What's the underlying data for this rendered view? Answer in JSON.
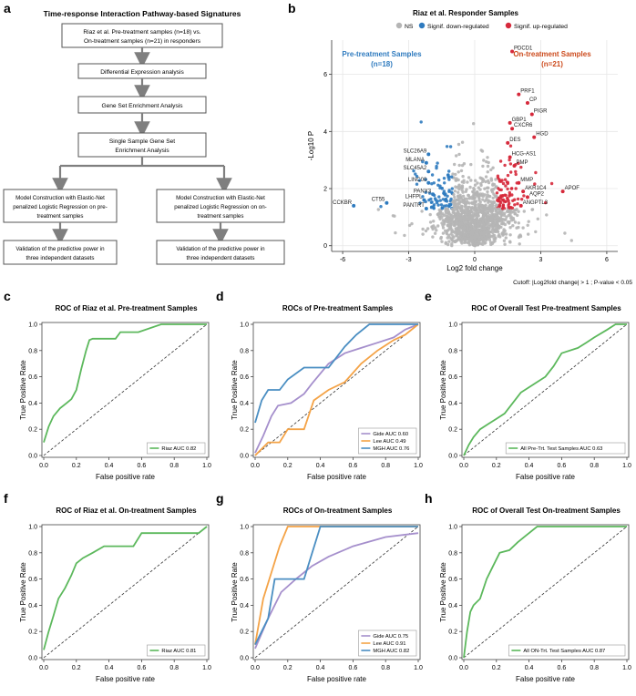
{
  "panel_letters": [
    "a",
    "b",
    "c",
    "d",
    "e",
    "f",
    "g",
    "h"
  ],
  "flowchart": {
    "title": "Time-response Interaction Pathway-based Signatures",
    "box1": [
      "Riaz et al. Pre-treatment samples (n=18) vs.",
      "On-treatment samples (n=21) in responders"
    ],
    "box2": "Differential Expression analysis",
    "box3": "Gene Set Enrichment Analysis",
    "box4": [
      "Single Sample Gene Set",
      "Enrichment Analysis"
    ],
    "left_model": [
      "Model Construction with Elastic-Net",
      "penalized Logistic Regression on pre-",
      "treatment samples"
    ],
    "right_model": [
      "Model Construction with Elastic-Net",
      "penalized Logistic Regression on on-",
      "treatment samples"
    ],
    "left_valid": [
      "Validation of the predictive power in",
      "three independent datasets"
    ],
    "right_valid": [
      "Validation of the predictive power in",
      "three independent datasets"
    ]
  },
  "colors": {
    "green": "#5cb85c",
    "purple": "#a58fcc",
    "orange": "#f4a347",
    "blue": "#4a8ec2",
    "ns": "#b5b5b5",
    "down": "#2f7bbf",
    "up": "#d6293b",
    "pre_label": "#2f7bbf",
    "on_label": "#cc4a1c"
  },
  "chart_data": [
    {
      "id": "b",
      "type": "scatter",
      "title": "Riaz et al. Responder Samples",
      "legend": [
        {
          "name": "NS",
          "color": "#b5b5b5"
        },
        {
          "name": "Signif. down-regulated",
          "color": "#2f7bbf"
        },
        {
          "name": "Signif. up-regulated",
          "color": "#d6293b"
        }
      ],
      "xlabel": "Log2 fold change",
      "ylabel": "-Log10 P",
      "xlim": [
        -6.5,
        6.5
      ],
      "ylim": [
        -0.2,
        7.2
      ],
      "xticks": [
        -6,
        -3,
        0,
        3,
        6
      ],
      "yticks": [
        0,
        2,
        4,
        6
      ],
      "annotations": {
        "pre": [
          "Pre-treatment Samples",
          "(n=18)"
        ],
        "on": [
          "On-treatment Samples",
          "(n=21)"
        ]
      },
      "caption": "Cutoff: |Log2fold change| > 1 ; P-value < 0.05",
      "gene_labels": [
        {
          "gene": "PDCD1",
          "x": 1.7,
          "y": 6.8
        },
        {
          "gene": "PRF1",
          "x": 2.0,
          "y": 5.3
        },
        {
          "gene": "CP",
          "x": 2.4,
          "y": 5.0
        },
        {
          "gene": "PIGR",
          "x": 2.6,
          "y": 4.6
        },
        {
          "gene": "GBP1",
          "x": 1.6,
          "y": 4.3
        },
        {
          "gene": "CXCR6",
          "x": 1.7,
          "y": 4.1
        },
        {
          "gene": "HGD",
          "x": 2.7,
          "y": 3.8
        },
        {
          "gene": "DES",
          "x": 1.5,
          "y": 3.6
        },
        {
          "gene": "SLC26A9",
          "x": -2.1,
          "y": 3.2
        },
        {
          "gene": "MLANA",
          "x": -2.2,
          "y": 2.9
        },
        {
          "gene": "SLC45A2",
          "x": -2.1,
          "y": 2.6
        },
        {
          "gene": "LINC00",
          "x": -2.1,
          "y": 2.2
        },
        {
          "gene": "PANX3",
          "x": -1.9,
          "y": 1.8
        },
        {
          "gene": "LHFPL",
          "x": -2.3,
          "y": 1.6
        },
        {
          "gene": "PANTRT",
          "x": -2.2,
          "y": 1.3
        },
        {
          "gene": "CT55",
          "x": -4.0,
          "y": 1.5
        },
        {
          "gene": "CCKBR",
          "x": -5.5,
          "y": 1.4
        },
        {
          "gene": "HCG-AS1",
          "x": 1.6,
          "y": 3.1
        },
        {
          "gene": "PMP",
          "x": 1.8,
          "y": 2.8
        },
        {
          "gene": "MMP",
          "x": 2.0,
          "y": 2.2
        },
        {
          "gene": "AKR1C4",
          "x": 2.2,
          "y": 1.9
        },
        {
          "gene": "AQP2",
          "x": 2.4,
          "y": 1.7
        },
        {
          "gene": "ANGPTL3",
          "x": 2.1,
          "y": 1.4
        },
        {
          "gene": "APOF",
          "x": 4.0,
          "y": 1.9
        }
      ]
    },
    {
      "id": "c",
      "type": "line",
      "title": "ROC of Riaz et al. Pre-treatment Samples",
      "xlabel": "False positive rate",
      "ylabel": "True Positive Rate",
      "xlim": [
        0,
        1
      ],
      "ylim": [
        0,
        1
      ],
      "series": [
        {
          "name": "Riaz AUC 0.82",
          "color": "#5cb85c",
          "points": [
            [
              0,
              0.1
            ],
            [
              0.03,
              0.22
            ],
            [
              0.06,
              0.3
            ],
            [
              0.1,
              0.36
            ],
            [
              0.14,
              0.4
            ],
            [
              0.17,
              0.43
            ],
            [
              0.2,
              0.5
            ],
            [
              0.23,
              0.66
            ],
            [
              0.26,
              0.8
            ],
            [
              0.28,
              0.88
            ],
            [
              0.3,
              0.89
            ],
            [
              0.44,
              0.89
            ],
            [
              0.47,
              0.94
            ],
            [
              0.55,
              0.94
            ],
            [
              0.58,
              0.94
            ],
            [
              0.72,
              1.0
            ],
            [
              1,
              1.0
            ]
          ]
        }
      ]
    },
    {
      "id": "d",
      "type": "line",
      "title": "ROCs of Pre-treatment Samples",
      "xlabel": "False positive rate",
      "ylabel": "True Positive Rate",
      "xlim": [
        0,
        1
      ],
      "ylim": [
        0,
        1
      ],
      "series": [
        {
          "name": "Gide AUC 0.60",
          "color": "#a58fcc",
          "points": [
            [
              0,
              0.02
            ],
            [
              0.05,
              0.15
            ],
            [
              0.1,
              0.3
            ],
            [
              0.14,
              0.38
            ],
            [
              0.22,
              0.4
            ],
            [
              0.3,
              0.47
            ],
            [
              0.35,
              0.55
            ],
            [
              0.45,
              0.7
            ],
            [
              0.55,
              0.78
            ],
            [
              0.65,
              0.82
            ],
            [
              0.75,
              0.86
            ],
            [
              0.85,
              0.9
            ],
            [
              0.92,
              0.96
            ],
            [
              1,
              1.0
            ]
          ]
        },
        {
          "name": "Lee AUC 0.49",
          "color": "#f4a347",
          "points": [
            [
              0,
              0.0
            ],
            [
              0.08,
              0.1
            ],
            [
              0.15,
              0.1
            ],
            [
              0.2,
              0.2
            ],
            [
              0.3,
              0.2
            ],
            [
              0.36,
              0.42
            ],
            [
              0.45,
              0.5
            ],
            [
              0.55,
              0.56
            ],
            [
              0.65,
              0.7
            ],
            [
              0.75,
              0.8
            ],
            [
              0.85,
              0.88
            ],
            [
              0.92,
              0.92
            ],
            [
              1,
              1.0
            ]
          ]
        },
        {
          "name": "MGH AUC 0.76",
          "color": "#4a8ec2",
          "points": [
            [
              0,
              0.25
            ],
            [
              0.04,
              0.42
            ],
            [
              0.08,
              0.5
            ],
            [
              0.15,
              0.5
            ],
            [
              0.2,
              0.58
            ],
            [
              0.3,
              0.67
            ],
            [
              0.45,
              0.67
            ],
            [
              0.55,
              0.83
            ],
            [
              0.62,
              0.92
            ],
            [
              0.7,
              1.0
            ],
            [
              0.9,
              1.0
            ],
            [
              1,
              1.0
            ]
          ]
        }
      ]
    },
    {
      "id": "e",
      "type": "line",
      "title": "ROC of Overall Test Pre-treatment Samples",
      "xlabel": "False positive rate",
      "ylabel": "True Positive Rate",
      "xlim": [
        0,
        1
      ],
      "ylim": [
        0,
        1
      ],
      "series": [
        {
          "name": "All Pre-Trt. Test Samples AUC 0.63",
          "color": "#5cb85c",
          "points": [
            [
              0,
              0.0
            ],
            [
              0.03,
              0.08
            ],
            [
              0.06,
              0.14
            ],
            [
              0.1,
              0.2
            ],
            [
              0.15,
              0.24
            ],
            [
              0.2,
              0.28
            ],
            [
              0.25,
              0.32
            ],
            [
              0.3,
              0.4
            ],
            [
              0.35,
              0.48
            ],
            [
              0.4,
              0.52
            ],
            [
              0.45,
              0.56
            ],
            [
              0.5,
              0.6
            ],
            [
              0.55,
              0.68
            ],
            [
              0.6,
              0.78
            ],
            [
              0.7,
              0.82
            ],
            [
              0.75,
              0.86
            ],
            [
              0.8,
              0.9
            ],
            [
              0.88,
              0.96
            ],
            [
              0.93,
              1.0
            ],
            [
              1,
              1.0
            ]
          ]
        }
      ]
    },
    {
      "id": "f",
      "type": "line",
      "title": "ROC of Riaz et al. On-treatment Samples",
      "xlabel": "False positive rate",
      "ylabel": "True Positive Rate",
      "xlim": [
        0,
        1
      ],
      "ylim": [
        0,
        1
      ],
      "series": [
        {
          "name": "Riaz AUC 0.81",
          "color": "#5cb85c",
          "points": [
            [
              0,
              0.06
            ],
            [
              0.03,
              0.2
            ],
            [
              0.06,
              0.32
            ],
            [
              0.09,
              0.45
            ],
            [
              0.13,
              0.53
            ],
            [
              0.17,
              0.63
            ],
            [
              0.2,
              0.72
            ],
            [
              0.24,
              0.76
            ],
            [
              0.3,
              0.8
            ],
            [
              0.37,
              0.85
            ],
            [
              0.55,
              0.85
            ],
            [
              0.6,
              0.95
            ],
            [
              0.95,
              0.95
            ],
            [
              1,
              1.0
            ]
          ]
        }
      ]
    },
    {
      "id": "g",
      "type": "line",
      "title": "ROCs of On-treatment Samples",
      "xlabel": "False positive rate",
      "ylabel": "True Positive Rate",
      "xlim": [
        0,
        1
      ],
      "ylim": [
        0,
        1
      ],
      "series": [
        {
          "name": "Gide AUC 0.75",
          "color": "#a58fcc",
          "points": [
            [
              0,
              0.07
            ],
            [
              0.08,
              0.3
            ],
            [
              0.16,
              0.5
            ],
            [
              0.25,
              0.6
            ],
            [
              0.35,
              0.7
            ],
            [
              0.45,
              0.77
            ],
            [
              0.6,
              0.85
            ],
            [
              0.8,
              0.92
            ],
            [
              1,
              0.95
            ]
          ]
        },
        {
          "name": "Lee AUC 0.91",
          "color": "#f4a347",
          "points": [
            [
              0,
              0.1
            ],
            [
              0.05,
              0.45
            ],
            [
              0.1,
              0.65
            ],
            [
              0.15,
              0.85
            ],
            [
              0.2,
              1.0
            ],
            [
              0.5,
              1.0
            ],
            [
              1,
              1.0
            ]
          ]
        },
        {
          "name": "MGH AUC 0.82",
          "color": "#4a8ec2",
          "points": [
            [
              0,
              0.1
            ],
            [
              0.08,
              0.3
            ],
            [
              0.12,
              0.6
            ],
            [
              0.3,
              0.6
            ],
            [
              0.35,
              0.8
            ],
            [
              0.4,
              1.0
            ],
            [
              1,
              1.0
            ]
          ]
        }
      ]
    },
    {
      "id": "h",
      "type": "line",
      "title": "ROC of Overall Test On-treatment Samples",
      "xlabel": "False positive rate",
      "ylabel": "True Positive Rate",
      "xlim": [
        0,
        1
      ],
      "ylim": [
        0,
        1
      ],
      "series": [
        {
          "name": "All ON-Trt. Test Samples AUC 0.87",
          "color": "#5cb85c",
          "points": [
            [
              0,
              0.0
            ],
            [
              0.02,
              0.2
            ],
            [
              0.04,
              0.35
            ],
            [
              0.06,
              0.4
            ],
            [
              0.1,
              0.45
            ],
            [
              0.14,
              0.6
            ],
            [
              0.18,
              0.7
            ],
            [
              0.22,
              0.8
            ],
            [
              0.28,
              0.82
            ],
            [
              0.33,
              0.88
            ],
            [
              0.38,
              0.93
            ],
            [
              0.45,
              1.0
            ],
            [
              1,
              1.0
            ]
          ]
        }
      ]
    }
  ]
}
